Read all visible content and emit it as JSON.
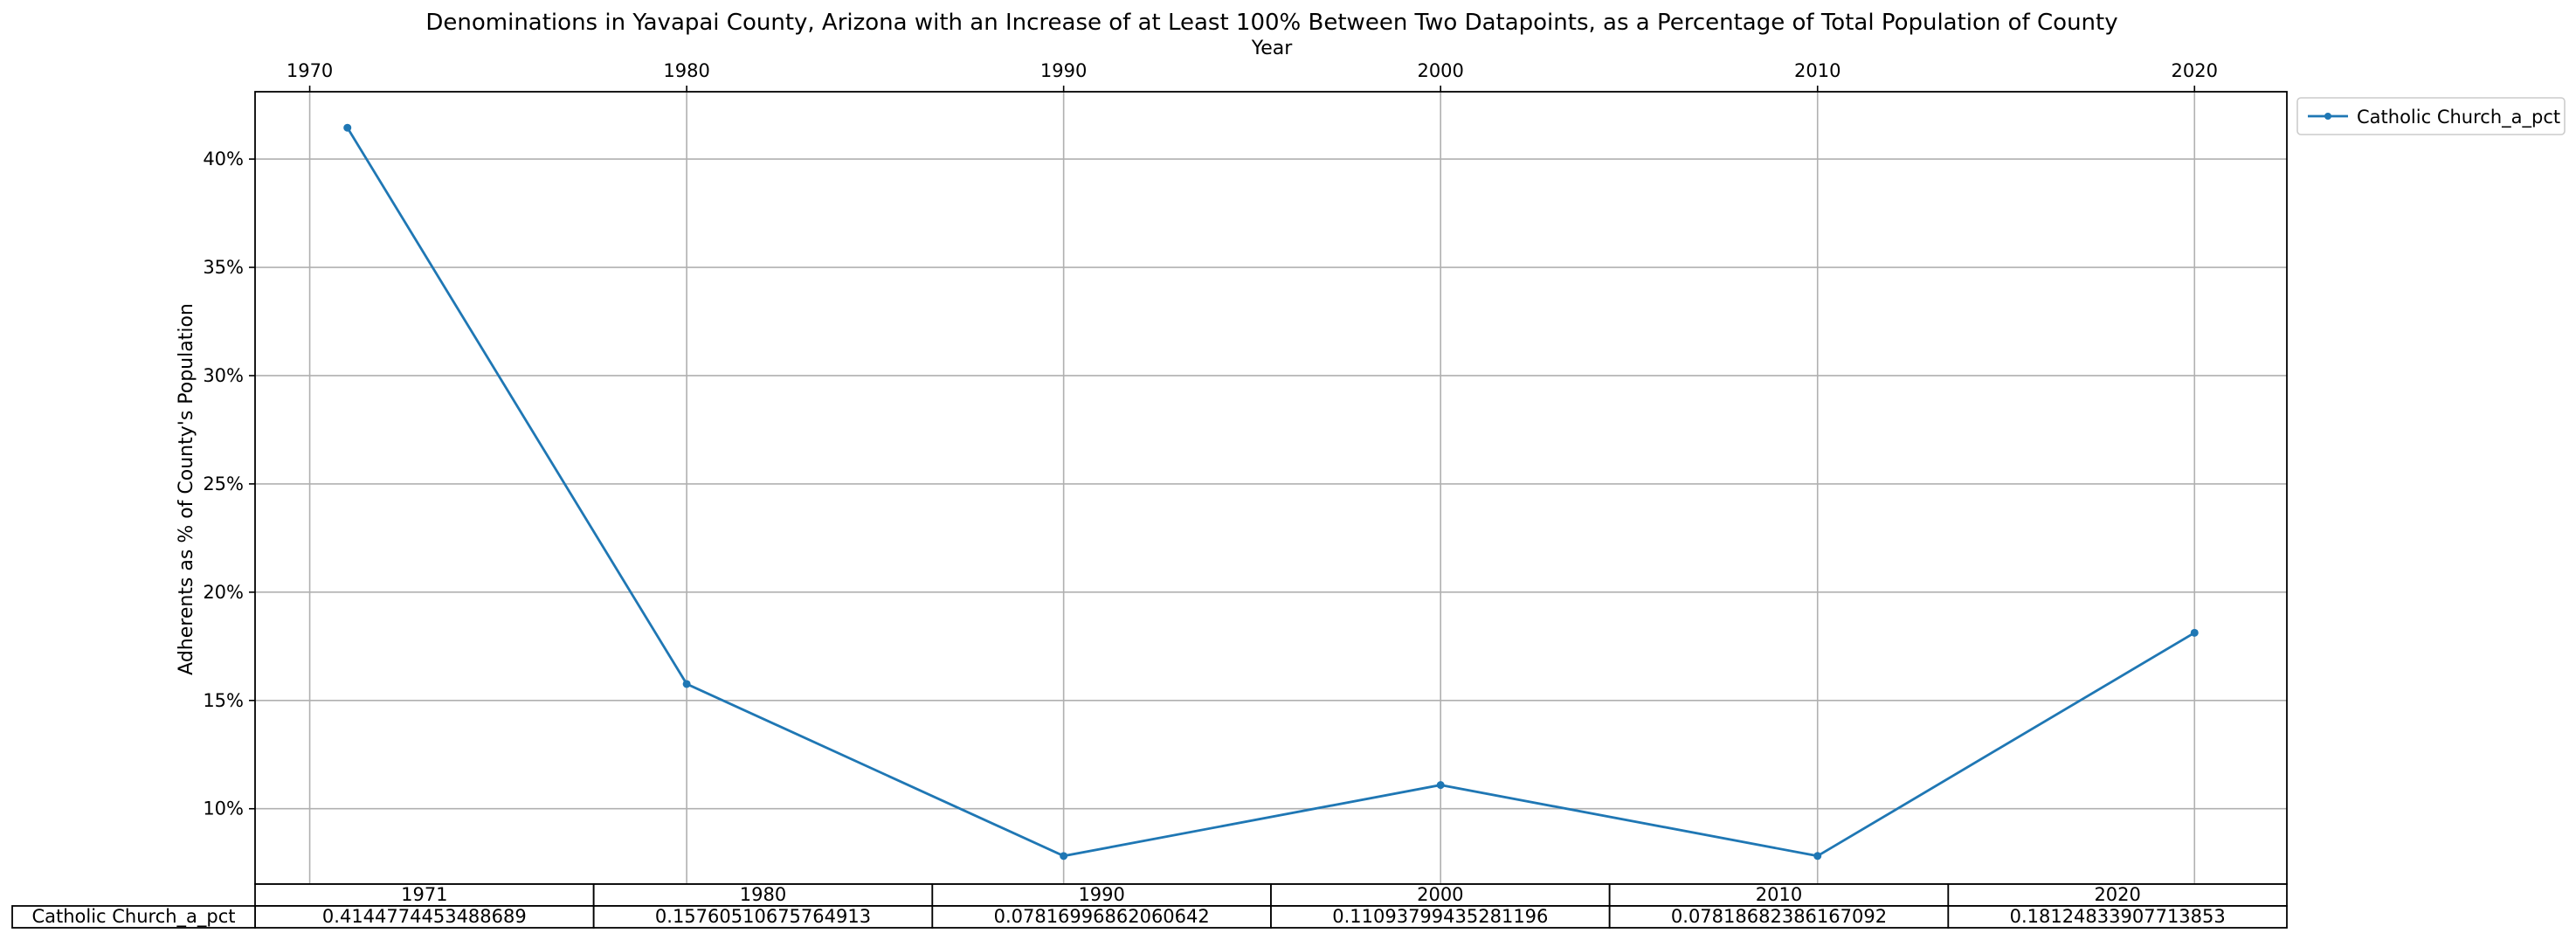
{
  "chart_data": {
    "type": "line",
    "title": "Denominations in Yavapai County, Arizona with an Increase of at Least 100% Between Two Datapoints, as a Percentage of Total Population of County",
    "xlabel": "Year",
    "ylabel": "Adherents as % of County's Population",
    "x": [
      1971,
      1980,
      1990,
      2000,
      2010,
      2020
    ],
    "x_ticks": [
      1970,
      1980,
      1990,
      2000,
      2010,
      2020
    ],
    "x_tick_labels": [
      "1970",
      "1980",
      "1990",
      "2000",
      "2010",
      "2020"
    ],
    "xlim": [
      1968.55,
      2022.45
    ],
    "x_axis_position": "top",
    "y_ticks": [
      0.1,
      0.15,
      0.2,
      0.25,
      0.3,
      0.35,
      0.4
    ],
    "y_tick_labels": [
      "10%",
      "15%",
      "20%",
      "25%",
      "30%",
      "35%",
      "40%"
    ],
    "ylim": [
      0.0652,
      0.4311
    ],
    "grid": true,
    "legend_position": "outside top-right",
    "series": [
      {
        "name": "Catholic Church_a_pct",
        "color": "#1f77b4",
        "marker": "dot",
        "values": [
          0.4144774453488689,
          0.15760510675764913,
          0.07816996862060642,
          0.11093799435281196,
          0.07818682386167092,
          0.18124833907713853
        ]
      }
    ],
    "table": {
      "col_labels": [
        "1971",
        "1980",
        "1990",
        "2000",
        "2010",
        "2020"
      ],
      "row_label": "Catholic Church_a_pct",
      "cells": [
        "0.4144774453488689",
        "0.15760510675764913",
        "0.07816996862060642",
        "0.11093799435281196",
        "0.07818682386167092",
        "0.18124833907713853"
      ]
    }
  }
}
